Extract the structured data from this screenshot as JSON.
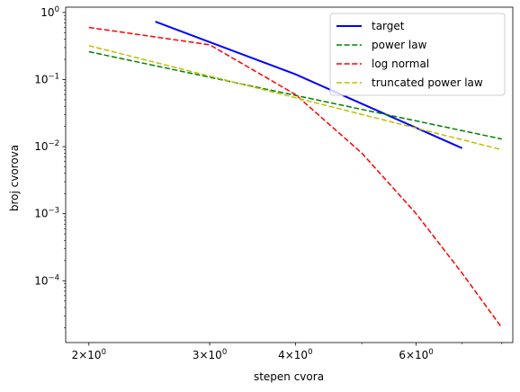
{
  "chart_data": {
    "type": "line",
    "title": "",
    "xlabel": "stepen cvora",
    "ylabel": "broj cvorova",
    "xscale": "log",
    "yscale": "log",
    "xlim": [
      1.85,
      8.3
    ],
    "ylim": [
      1.2e-05,
      1.2
    ],
    "grid": false,
    "legend_position": "top-right",
    "x_ticks": [
      {
        "value": 2,
        "base": "2",
        "exp": "0",
        "sep": "×10"
      },
      {
        "value": 3,
        "base": "3",
        "exp": "0",
        "sep": "×10"
      },
      {
        "value": 4,
        "base": "4",
        "exp": "0",
        "sep": "×10"
      },
      {
        "value": 6,
        "base": "6",
        "exp": "0",
        "sep": "×10"
      }
    ],
    "y_ticks": [
      {
        "value": 1,
        "base": "10",
        "exp": "0"
      },
      {
        "value": 0.1,
        "base": "10",
        "exp": "−1"
      },
      {
        "value": 0.01,
        "base": "10",
        "exp": "−2"
      },
      {
        "value": 0.001,
        "base": "10",
        "exp": "−3"
      },
      {
        "value": 0.0001,
        "base": "10",
        "exp": "−4"
      }
    ],
    "series": [
      {
        "name": "target",
        "color": "#0000ff",
        "style": "solid",
        "x": [
          2.5,
          4,
          7
        ],
        "y": [
          0.73,
          0.12,
          0.0095
        ]
      },
      {
        "name": "power law",
        "color": "#008000",
        "style": "dashed",
        "x": [
          2,
          8
        ],
        "y": [
          0.26,
          0.013
        ]
      },
      {
        "name": "log normal",
        "color": "#ff0000",
        "style": "dashed",
        "x": [
          2,
          3,
          4,
          5,
          6,
          7,
          8
        ],
        "y": [
          0.6,
          0.33,
          0.06,
          0.008,
          0.001,
          0.00013,
          2e-05
        ]
      },
      {
        "name": "truncated power law",
        "color": "#bfbf00",
        "style": "dashed",
        "x": [
          2,
          8
        ],
        "y": [
          0.32,
          0.009
        ]
      }
    ]
  }
}
